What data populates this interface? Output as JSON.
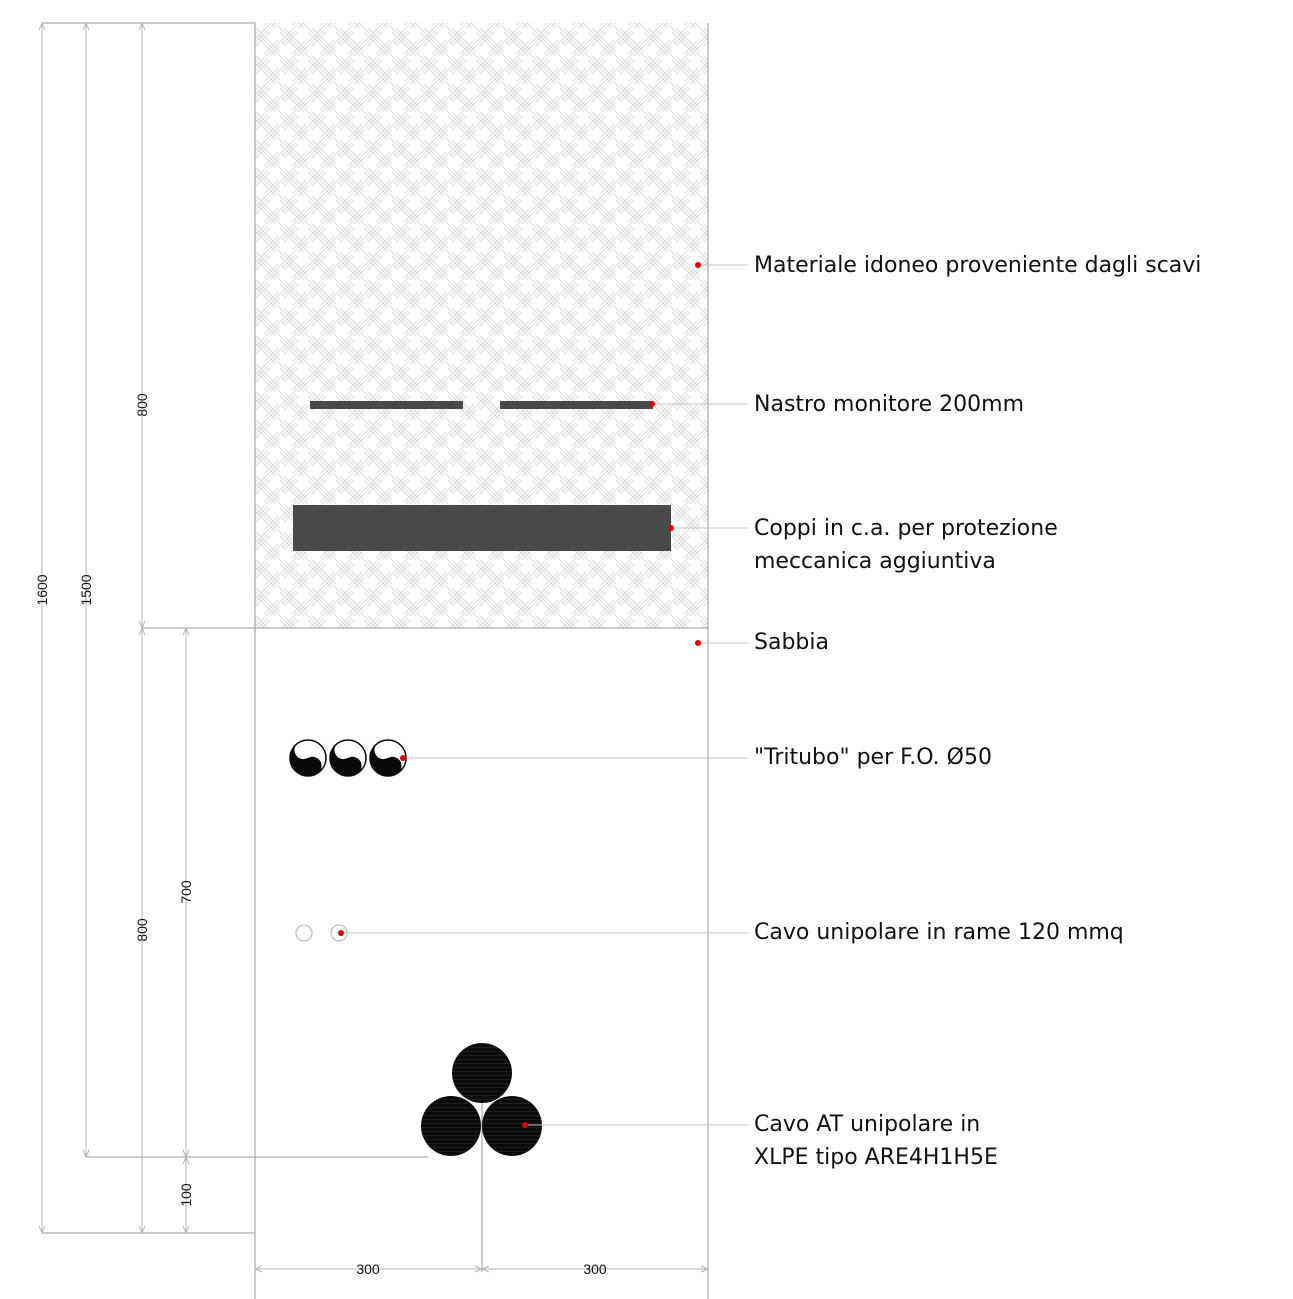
{
  "dimensions": {
    "total_depth": "1600",
    "cover_depth": "1500",
    "fill_depth": "800",
    "sand_depth": "800",
    "sand_to_cable": "700",
    "bedding": "100",
    "half_width_left": "300",
    "half_width_right": "300"
  },
  "labels": {
    "fill_material": "Materiale idoneo proveniente dagli scavi",
    "warning_tape": "Nastro monitore 200mm",
    "protection_line1": "Coppi in c.a. per protezione",
    "protection_line2": "meccanica aggiuntiva",
    "sand": "Sabbia",
    "fiber_duct": "\"Tritubo\" per F.O. Ø50",
    "earth_cable": "Cavo unipolare in rame 120 mmq",
    "hv_cable_line1": "Cavo AT unipolare in",
    "hv_cable_line2": "XLPE tipo ARE4H1H5E"
  },
  "colors": {
    "slab": "#4a4a4a",
    "cable": "#0a0a0a",
    "leader_dot": "#e00000",
    "hatch": "#dcdcdc",
    "line": "#9a9a9a"
  }
}
